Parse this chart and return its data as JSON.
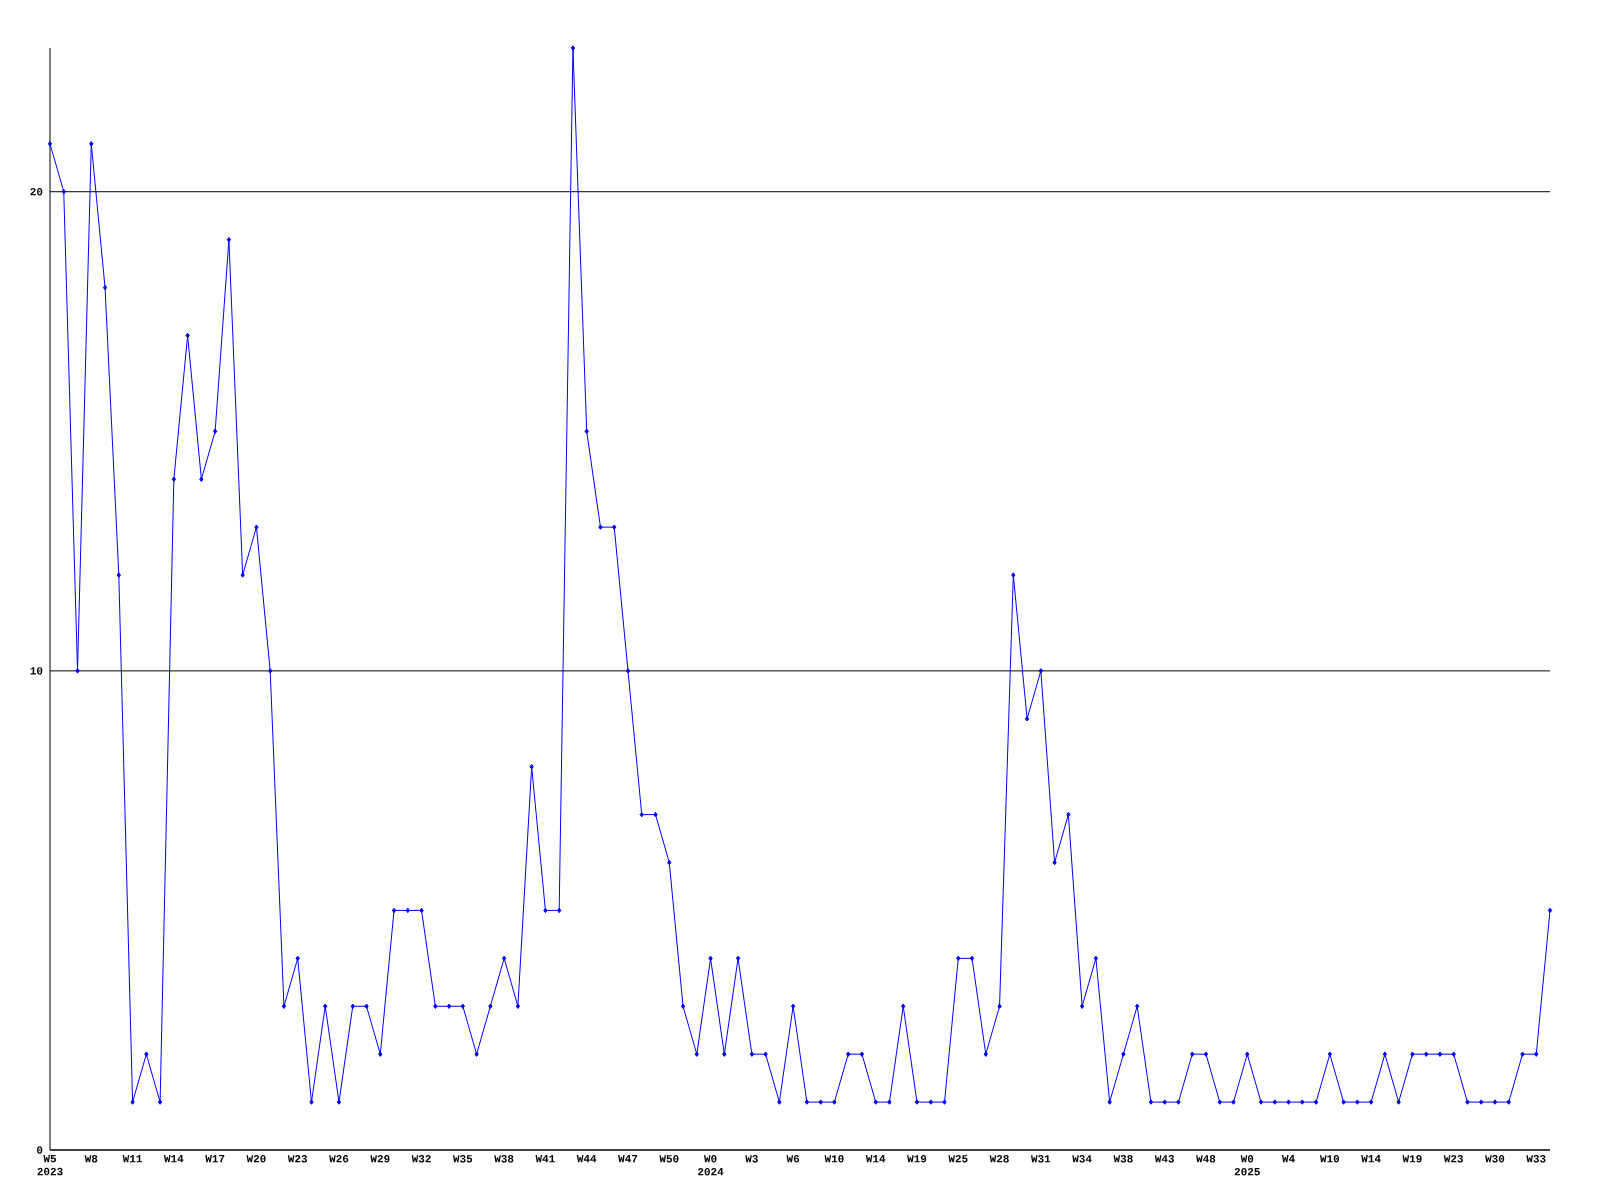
{
  "chart_data": {
    "type": "line",
    "categories": [
      "W5 2023",
      null,
      null,
      "W8",
      null,
      null,
      "W11",
      null,
      null,
      "W14",
      null,
      null,
      "W17",
      null,
      null,
      "W20",
      null,
      null,
      "W23",
      null,
      null,
      "W26",
      null,
      null,
      "W29",
      null,
      null,
      "W32",
      null,
      null,
      "W35",
      null,
      null,
      "W38",
      null,
      null,
      "W41",
      null,
      null,
      "W44",
      null,
      null,
      "W47",
      null,
      null,
      "W50",
      null,
      null,
      "W0 2024",
      null,
      null,
      "W3",
      null,
      null,
      "W6",
      null,
      null,
      "W10",
      null,
      null,
      "W14",
      null,
      null,
      "W19",
      null,
      null,
      "W25",
      null,
      null,
      "W28",
      null,
      null,
      "W31",
      null,
      null,
      "W34",
      null,
      null,
      "W38",
      null,
      null,
      "W43",
      null,
      null,
      "W48",
      null,
      null,
      "W0 2025",
      null,
      null,
      "W4",
      null,
      null,
      "W10",
      null,
      null,
      "W14",
      null,
      null,
      "W19",
      null,
      null,
      "W23",
      null,
      null,
      "W30",
      null,
      null,
      "W33",
      null
    ],
    "values": [
      21,
      20,
      10,
      21,
      18,
      12,
      1,
      2,
      1,
      14,
      17,
      14,
      15,
      19,
      12,
      13,
      10,
      3,
      4,
      1,
      3,
      1,
      3,
      3,
      2,
      5,
      5,
      5,
      3,
      3,
      3,
      2,
      3,
      4,
      3,
      8,
      5,
      5,
      23,
      15,
      13,
      13,
      10,
      7,
      7,
      6,
      3,
      2,
      4,
      2,
      4,
      2,
      2,
      1,
      3,
      1,
      1,
      1,
      2,
      2,
      1,
      1,
      3,
      1,
      1,
      1,
      4,
      4,
      2,
      3,
      12,
      9,
      10,
      6,
      7,
      3,
      4,
      1,
      2,
      3,
      1,
      1,
      1,
      2,
      2,
      1,
      1,
      2,
      1,
      1,
      1,
      1,
      1,
      2,
      1,
      1,
      1,
      2,
      1,
      2,
      2,
      2,
      2,
      1,
      1,
      1,
      1,
      2,
      2,
      5
    ],
    "color": "#0000ff",
    "marker": "diamond",
    "line_style": "solid",
    "ylim": [
      0,
      23
    ],
    "yticks": [
      0,
      10,
      20
    ],
    "grid": "y"
  }
}
